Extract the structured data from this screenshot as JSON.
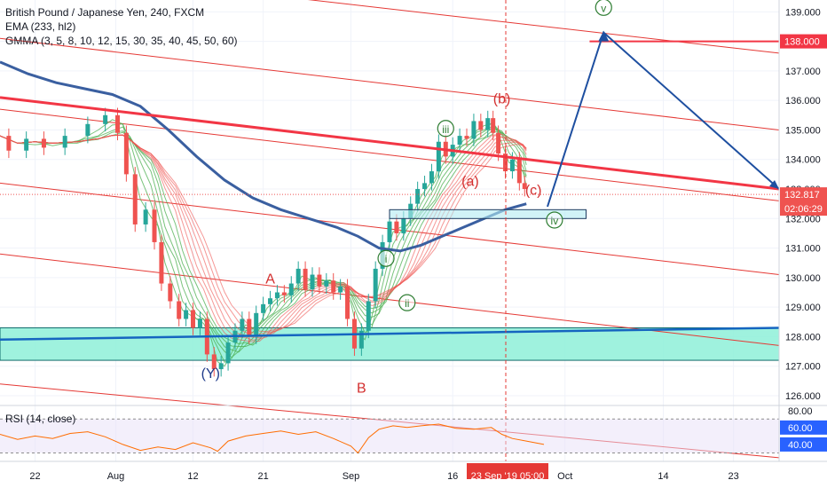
{
  "header": {
    "symbol_line": "British Pound / Japanese Yen, 240, FXCM",
    "ema_line": "EMA (233, hl2)",
    "gmma_line": "GMMA (3, 5, 8, 10, 12, 15, 30, 35, 40, 45, 50, 60)"
  },
  "rsi_label": "RSI (14, close)",
  "chart_data": {
    "type": "candlestick",
    "symbol": "British Pound / Japanese Yen",
    "interval": "240",
    "source": "FXCM",
    "y_axis": {
      "min": 125.7,
      "max": 139.4,
      "ticks": [
        "139.000",
        "138.000",
        "137.000",
        "136.000",
        "135.000",
        "134.000",
        "133.000",
        "132.000",
        "131.000",
        "130.000",
        "129.000",
        "128.000",
        "127.000",
        "126.000"
      ]
    },
    "last_price": {
      "value": 132.817,
      "label": "132.817",
      "countdown": "02:06:29",
      "color": "#ef5350"
    },
    "target_label": {
      "value": 138.0,
      "label": "138.000",
      "color": "#f23645"
    },
    "x_axis": {
      "ticks": [
        "22",
        "Aug",
        "12",
        "21",
        "Sep",
        "16",
        "Oct",
        "14",
        "23"
      ],
      "cursor_label": "23 Sep '19   05:00"
    },
    "price_path": [
      [
        0,
        134.8
      ],
      [
        5,
        134.3
      ],
      [
        10,
        134.7
      ],
      [
        15,
        134.4
      ],
      [
        22,
        134.8
      ],
      [
        28,
        135.2
      ],
      [
        32,
        135.5
      ],
      [
        35,
        134.9
      ],
      [
        37,
        133.5
      ],
      [
        40,
        131.8
      ],
      [
        43,
        132.3
      ],
      [
        45,
        131.2
      ],
      [
        47,
        129.8
      ],
      [
        50,
        129.2
      ],
      [
        52,
        128.6
      ],
      [
        54,
        128.9
      ],
      [
        56,
        128.3
      ],
      [
        58,
        128.6
      ],
      [
        60,
        127.4
      ],
      [
        62,
        126.9
      ],
      [
        64,
        127.1
      ],
      [
        66,
        127.8
      ],
      [
        68,
        128.2
      ],
      [
        70,
        128.6
      ],
      [
        72,
        128.0
      ],
      [
        74,
        128.8
      ],
      [
        76,
        129.1
      ],
      [
        78,
        129.3
      ],
      [
        80,
        129.5
      ],
      [
        82,
        129.4
      ],
      [
        84,
        129.8
      ],
      [
        86,
        130.3
      ],
      [
        88,
        129.6
      ],
      [
        90,
        130.1
      ],
      [
        92,
        129.7
      ],
      [
        94,
        129.9
      ],
      [
        96,
        129.5
      ],
      [
        98,
        129.7
      ],
      [
        100,
        128.6
      ],
      [
        102,
        127.6
      ],
      [
        104,
        128.2
      ],
      [
        106,
        129.2
      ],
      [
        108,
        130.3
      ],
      [
        110,
        131.2
      ],
      [
        112,
        131.9
      ],
      [
        114,
        131.5
      ],
      [
        116,
        132.0
      ],
      [
        118,
        132.5
      ],
      [
        120,
        133.0
      ],
      [
        122,
        133.2
      ],
      [
        124,
        133.6
      ],
      [
        126,
        134.6
      ],
      [
        128,
        134.1
      ],
      [
        130,
        134.5
      ],
      [
        132,
        134.8
      ],
      [
        134,
        134.7
      ],
      [
        136,
        135.3
      ],
      [
        138,
        135.0
      ],
      [
        140,
        135.4
      ],
      [
        141,
        134.9
      ],
      [
        143,
        134.2
      ],
      [
        145,
        133.6
      ],
      [
        147,
        134.0
      ],
      [
        149,
        133.2
      ],
      [
        150,
        133.0
      ]
    ],
    "ema_233": [
      [
        0,
        137.3
      ],
      [
        8,
        136.9
      ],
      [
        16,
        136.6
      ],
      [
        24,
        136.4
      ],
      [
        32,
        136.2
      ],
      [
        40,
        135.8
      ],
      [
        48,
        135.0
      ],
      [
        56,
        134.1
      ],
      [
        64,
        133.3
      ],
      [
        72,
        132.7
      ],
      [
        80,
        132.3
      ],
      [
        88,
        132.0
      ],
      [
        96,
        131.7
      ],
      [
        102,
        131.4
      ],
      [
        108,
        131.0
      ],
      [
        114,
        130.9
      ],
      [
        120,
        131.1
      ],
      [
        126,
        131.4
      ],
      [
        132,
        131.7
      ],
      [
        138,
        132.0
      ],
      [
        144,
        132.3
      ],
      [
        150,
        132.5
      ]
    ],
    "wave_labels": [
      {
        "text": "(Y)",
        "x": 60,
        "y": 126.6,
        "color": "#1e3a8a",
        "circled": false
      },
      {
        "text": "A",
        "x": 77,
        "y": 129.8,
        "color": "#d32f2f",
        "circled": false
      },
      {
        "text": "B",
        "x": 103,
        "y": 126.1,
        "color": "#d32f2f",
        "circled": false
      },
      {
        "text": "i",
        "x": 110,
        "y": 130.5,
        "color": "#2e7d32",
        "circled": true
      },
      {
        "text": "ii",
        "x": 116,
        "y": 129.0,
        "color": "#2e7d32",
        "circled": true
      },
      {
        "text": "iii",
        "x": 127,
        "y": 134.9,
        "color": "#2e7d32",
        "circled": true
      },
      {
        "text": "(a)",
        "x": 134,
        "y": 133.1,
        "color": "#d32f2f",
        "circled": false
      },
      {
        "text": "(b)",
        "x": 143,
        "y": 135.9,
        "color": "#d32f2f",
        "circled": false
      },
      {
        "text": "(c)",
        "x": 152,
        "y": 132.8,
        "color": "#d32f2f",
        "circled": false
      },
      {
        "text": "iv",
        "x": 158,
        "y": 131.8,
        "color": "#2e7d32",
        "circled": true
      },
      {
        "text": "v",
        "x": 172,
        "y": 139.0,
        "color": "#2e7d32",
        "circled": true
      }
    ],
    "projection_path": [
      [
        156,
        132.4
      ],
      [
        172,
        138.3
      ],
      [
        222,
        133.0
      ]
    ],
    "channel_lines": [
      {
        "from": [
          0,
          140.6
        ],
        "to": [
          222,
          137.6
        ]
      },
      {
        "from": [
          0,
          138.1
        ],
        "to": [
          222,
          135.0
        ]
      },
      {
        "from": [
          0,
          135.7
        ],
        "to": [
          222,
          132.6
        ]
      },
      {
        "from": [
          0,
          133.2
        ],
        "to": [
          222,
          130.1
        ]
      },
      {
        "from": [
          0,
          130.8
        ],
        "to": [
          222,
          127.7
        ]
      },
      {
        "from": [
          0,
          126.4
        ],
        "to": [
          222,
          123.9
        ]
      }
    ],
    "main_trend_line": {
      "from": [
        0,
        136.1
      ],
      "to": [
        222,
        133.0
      ],
      "color": "#f23645"
    },
    "support_line": {
      "from": [
        0,
        127.9
      ],
      "to": [
        222,
        128.3
      ],
      "color": "#1565c0"
    },
    "support_zone": {
      "x_from": 0,
      "x_to": 222,
      "y_from": 127.2,
      "y_to": 128.3,
      "color": "#8ef0d8"
    },
    "retest_box": {
      "x_from": 111,
      "x_to": 167,
      "y_from": 132.0,
      "y_to": 132.3
    },
    "target_line": {
      "x_from": 168,
      "x_to": 222,
      "y": 138.0
    },
    "gmma_colors": {
      "short": "#4caf50",
      "long": "#ef5350"
    },
    "rsi": {
      "ticks": [
        "80.00",
        "60.00",
        "40.00"
      ],
      "levels": [
        70,
        30
      ],
      "min": 20,
      "max": 85,
      "values": [
        [
          0,
          52
        ],
        [
          5,
          46
        ],
        [
          10,
          50
        ],
        [
          15,
          47
        ],
        [
          20,
          53
        ],
        [
          25,
          55
        ],
        [
          30,
          49
        ],
        [
          35,
          40
        ],
        [
          40,
          33
        ],
        [
          45,
          37
        ],
        [
          50,
          34
        ],
        [
          55,
          42
        ],
        [
          60,
          36
        ],
        [
          62,
          32
        ],
        [
          65,
          44
        ],
        [
          70,
          50
        ],
        [
          75,
          53
        ],
        [
          80,
          56
        ],
        [
          85,
          52
        ],
        [
          90,
          55
        ],
        [
          95,
          47
        ],
        [
          100,
          38
        ],
        [
          102,
          30
        ],
        [
          105,
          48
        ],
        [
          108,
          58
        ],
        [
          112,
          62
        ],
        [
          116,
          60
        ],
        [
          120,
          62
        ],
        [
          125,
          64
        ],
        [
          130,
          59
        ],
        [
          135,
          58
        ],
        [
          140,
          60
        ],
        [
          143,
          52
        ],
        [
          146,
          47
        ],
        [
          150,
          44
        ],
        [
          155,
          40
        ]
      ]
    }
  }
}
